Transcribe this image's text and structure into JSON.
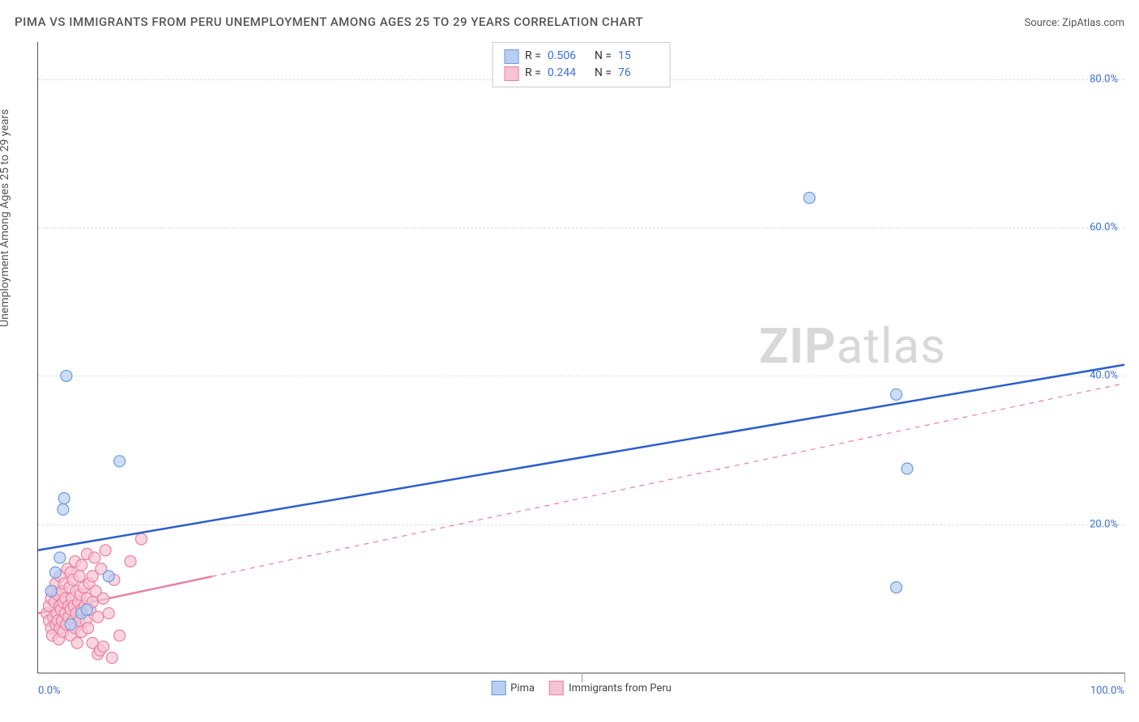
{
  "title": "PIMA VS IMMIGRANTS FROM PERU UNEMPLOYMENT AMONG AGES 25 TO 29 YEARS CORRELATION CHART",
  "source": "Source: ZipAtlas.com",
  "y_axis_label": "Unemployment Among Ages 25 to 29 years",
  "watermark_bold": "ZIP",
  "watermark_light": "atlas",
  "chart": {
    "type": "scatter",
    "background_color": "#ffffff",
    "grid_color": "#dddddd",
    "axis_color": "#555555",
    "tick_label_color": "#3b6fd6",
    "xlim": [
      0,
      100
    ],
    "ylim": [
      0,
      85
    ],
    "x_ticks": [
      0,
      50,
      100
    ],
    "x_tick_labels_shown": {
      "0": "0.0%",
      "100": "100.0%"
    },
    "y_ticks": [
      20,
      40,
      60,
      80
    ],
    "y_tick_labels": [
      "20.0%",
      "40.0%",
      "60.0%",
      "80.0%"
    ],
    "grid_y": [
      20,
      40,
      60,
      80
    ],
    "marker_radius": 7,
    "marker_stroke_width": 1.2,
    "line_width": 2.5,
    "series": [
      {
        "name": "Pima",
        "color_fill": "#b8cef2",
        "color_stroke": "#6b9ae0",
        "line_color": "#2a5fc9",
        "r": "0.506",
        "n": "15",
        "trend": {
          "x1": 0,
          "y1": 16.5,
          "x2": 100,
          "y2": 41.5,
          "dashed": false,
          "dash_after_x": null
        },
        "points": [
          {
            "x": 1.2,
            "y": 11.0
          },
          {
            "x": 1.6,
            "y": 13.5
          },
          {
            "x": 2.0,
            "y": 15.5
          },
          {
            "x": 2.3,
            "y": 22.0
          },
          {
            "x": 2.4,
            "y": 23.5
          },
          {
            "x": 2.6,
            "y": 40.0
          },
          {
            "x": 3.0,
            "y": 6.5
          },
          {
            "x": 4.0,
            "y": 8.0
          },
          {
            "x": 4.5,
            "y": 8.5
          },
          {
            "x": 6.5,
            "y": 13.0
          },
          {
            "x": 7.5,
            "y": 28.5
          },
          {
            "x": 71.0,
            "y": 64.0
          },
          {
            "x": 79.0,
            "y": 37.5
          },
          {
            "x": 80.0,
            "y": 27.5
          },
          {
            "x": 79.0,
            "y": 11.5
          }
        ]
      },
      {
        "name": "Immigrants from Peru",
        "color_fill": "#f6c4d2",
        "color_stroke": "#e97fa3",
        "line_color": "#e97fa3",
        "r": "0.244",
        "n": "76",
        "trend": {
          "x1": 0,
          "y1": 8.0,
          "x2": 100,
          "y2": 39.0,
          "dashed": true,
          "dash_after_x": 16
        },
        "points": [
          {
            "x": 0.8,
            "y": 8.0
          },
          {
            "x": 1.0,
            "y": 7.0
          },
          {
            "x": 1.0,
            "y": 9.0
          },
          {
            "x": 1.2,
            "y": 6.0
          },
          {
            "x": 1.2,
            "y": 10.0
          },
          {
            "x": 1.3,
            "y": 5.0
          },
          {
            "x": 1.4,
            "y": 11.0
          },
          {
            "x": 1.4,
            "y": 7.5
          },
          {
            "x": 1.5,
            "y": 9.5
          },
          {
            "x": 1.6,
            "y": 6.5
          },
          {
            "x": 1.6,
            "y": 12.0
          },
          {
            "x": 1.7,
            "y": 8.0
          },
          {
            "x": 1.8,
            "y": 7.0
          },
          {
            "x": 1.8,
            "y": 10.5
          },
          {
            "x": 1.9,
            "y": 4.5
          },
          {
            "x": 2.0,
            "y": 9.0
          },
          {
            "x": 2.0,
            "y": 13.0
          },
          {
            "x": 2.0,
            "y": 6.0
          },
          {
            "x": 2.1,
            "y": 8.5
          },
          {
            "x": 2.2,
            "y": 11.0
          },
          {
            "x": 2.2,
            "y": 7.0
          },
          {
            "x": 2.3,
            "y": 9.5
          },
          {
            "x": 2.3,
            "y": 5.5
          },
          {
            "x": 2.4,
            "y": 12.0
          },
          {
            "x": 2.5,
            "y": 8.0
          },
          {
            "x": 2.5,
            "y": 10.0
          },
          {
            "x": 2.6,
            "y": 6.5
          },
          {
            "x": 2.7,
            "y": 14.0
          },
          {
            "x": 2.8,
            "y": 9.0
          },
          {
            "x": 2.8,
            "y": 7.5
          },
          {
            "x": 2.9,
            "y": 11.5
          },
          {
            "x": 3.0,
            "y": 8.5
          },
          {
            "x": 3.0,
            "y": 5.0
          },
          {
            "x": 3.0,
            "y": 13.5
          },
          {
            "x": 3.1,
            "y": 10.0
          },
          {
            "x": 3.2,
            "y": 7.0
          },
          {
            "x": 3.2,
            "y": 12.5
          },
          {
            "x": 3.3,
            "y": 9.0
          },
          {
            "x": 3.4,
            "y": 6.0
          },
          {
            "x": 3.4,
            "y": 15.0
          },
          {
            "x": 3.5,
            "y": 8.0
          },
          {
            "x": 3.5,
            "y": 11.0
          },
          {
            "x": 3.6,
            "y": 4.0
          },
          {
            "x": 3.7,
            "y": 9.5
          },
          {
            "x": 3.8,
            "y": 13.0
          },
          {
            "x": 3.8,
            "y": 7.0
          },
          {
            "x": 3.9,
            "y": 10.5
          },
          {
            "x": 4.0,
            "y": 8.5
          },
          {
            "x": 4.0,
            "y": 5.5
          },
          {
            "x": 4.0,
            "y": 14.5
          },
          {
            "x": 4.2,
            "y": 11.5
          },
          {
            "x": 4.3,
            "y": 9.0
          },
          {
            "x": 4.4,
            "y": 7.0
          },
          {
            "x": 4.5,
            "y": 16.0
          },
          {
            "x": 4.5,
            "y": 10.0
          },
          {
            "x": 4.6,
            "y": 6.0
          },
          {
            "x": 4.7,
            "y": 12.0
          },
          {
            "x": 4.8,
            "y": 8.5
          },
          {
            "x": 5.0,
            "y": 13.0
          },
          {
            "x": 5.0,
            "y": 9.5
          },
          {
            "x": 5.0,
            "y": 4.0
          },
          {
            "x": 5.2,
            "y": 15.5
          },
          {
            "x": 5.3,
            "y": 11.0
          },
          {
            "x": 5.5,
            "y": 7.5
          },
          {
            "x": 5.5,
            "y": 2.5
          },
          {
            "x": 5.7,
            "y": 3.0
          },
          {
            "x": 5.8,
            "y": 14.0
          },
          {
            "x": 6.0,
            "y": 10.0
          },
          {
            "x": 6.0,
            "y": 3.5
          },
          {
            "x": 6.2,
            "y": 16.5
          },
          {
            "x": 6.5,
            "y": 8.0
          },
          {
            "x": 6.8,
            "y": 2.0
          },
          {
            "x": 7.0,
            "y": 12.5
          },
          {
            "x": 7.5,
            "y": 5.0
          },
          {
            "x": 8.5,
            "y": 15.0
          },
          {
            "x": 9.5,
            "y": 18.0
          }
        ]
      }
    ]
  }
}
